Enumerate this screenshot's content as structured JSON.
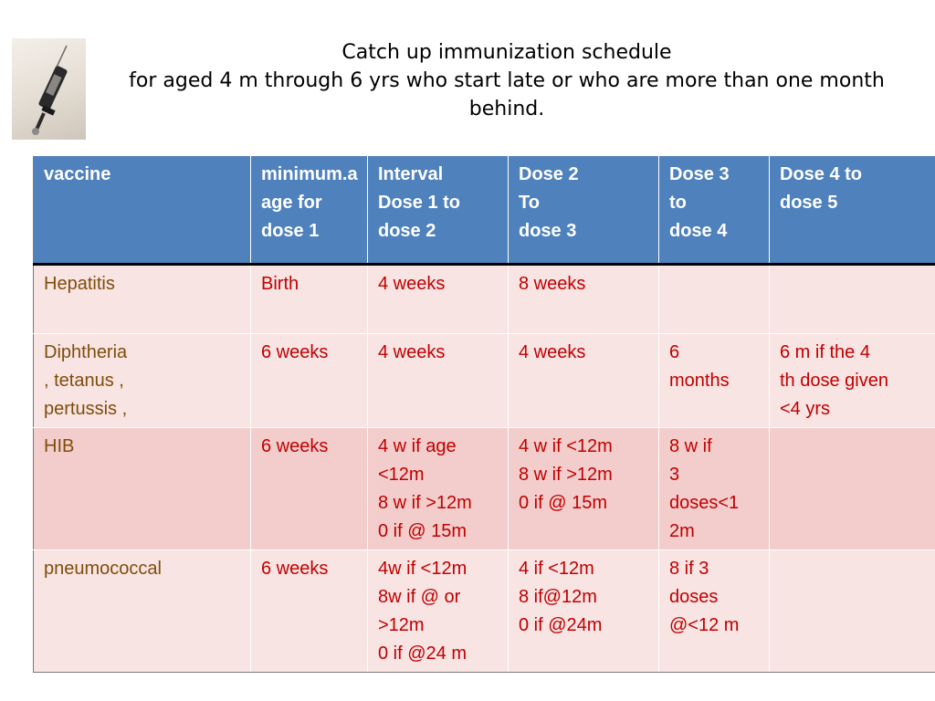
{
  "title": {
    "line1": "Catch up immunization schedule",
    "line2": "for aged 4 m through 6 yrs who start late or who are more than one month behind."
  },
  "image": {
    "icon": "syringe-icon"
  },
  "table": {
    "headers": {
      "vaccine": "vaccine",
      "min_age_text": "minimum.a age for dose",
      "min_age_num": "1",
      "interval_1_2": "Interval\nDose 1 to\ndose 2",
      "dose_2_3": "Dose 2\nTo\n dose 3",
      "dose_3_4": "Dose 3\nto\ndose 4",
      "dose_4_5": "Dose 4 to\ndose 5"
    },
    "rows": [
      [
        "Hepatitis",
        "Birth",
        "4 weeks",
        "8 weeks",
        "",
        ""
      ],
      [
        "Diphtheria\n, tetanus  ,\npertussis ,",
        "6 weeks",
        "4 weeks",
        "4 weeks",
        "6\nmonths",
        "6 m  if the 4\nth dose given\n<4 yrs"
      ],
      [
        "HIB",
        "6 weeks",
        "4 w if age\n<12m\n8 w if >12m\n0 if @ 15m",
        "4 w if <12m\n8 w if >12m\n0 if @ 15m",
        "8  w if\n3\ndoses<1\n2m",
        ""
      ],
      [
        "pneumococcal",
        "6 weeks",
        "4w if <12m\n8w if @ or\n>12m\n0 if @24 m",
        "4 if <12m\n8 if@12m\n0 if @24m",
        "8 if 3\ndoses\n@<12 m",
        ""
      ]
    ]
  },
  "colors": {
    "header_bg": "#4f81bd",
    "row_light": "#f8e4e3",
    "row_dark": "#f3cdcb",
    "value_text": "#c00000",
    "vaccine_text": "#7f4d0a"
  }
}
